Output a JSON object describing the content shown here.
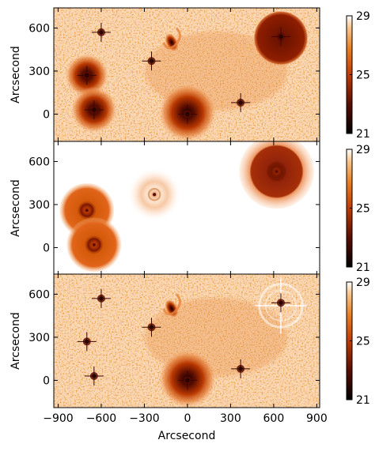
{
  "figure": {
    "xlabel": "Arcsecond",
    "ylabel": "Arcsecond",
    "x_ticks": [
      "−900",
      "−600",
      "−300",
      "0",
      "300",
      "600",
      "900"
    ],
    "y_ticks": [
      "600",
      "300",
      "0"
    ],
    "x_range": [
      -930,
      920
    ],
    "y_range": [
      -190,
      740
    ]
  },
  "panels": [
    {
      "id": "observed",
      "colorbar": {
        "ticks": [
          "29",
          "25",
          "21"
        ],
        "range": [
          21,
          29
        ]
      },
      "sources": [
        {
          "kind": "halo",
          "x": -700,
          "y": 270,
          "r": 150
        },
        {
          "kind": "halo",
          "x": -650,
          "y": 30,
          "r": 160
        },
        {
          "kind": "halo",
          "x": 650,
          "y": 530,
          "r": 190
        },
        {
          "kind": "halo",
          "x": 0,
          "y": 10,
          "r": 200
        },
        {
          "kind": "galaxy",
          "x": -110,
          "y": 500,
          "r": 70
        },
        {
          "kind": "star",
          "x": -700,
          "y": 270
        },
        {
          "kind": "star",
          "x": -650,
          "y": 30
        },
        {
          "kind": "star",
          "x": 650,
          "y": 540
        },
        {
          "kind": "star",
          "x": 0,
          "y": 0
        },
        {
          "kind": "star",
          "x": -250,
          "y": 370
        },
        {
          "kind": "star",
          "x": 370,
          "y": 80
        },
        {
          "kind": "star",
          "x": -600,
          "y": 570
        }
      ]
    },
    {
      "id": "model",
      "colorbar": {
        "ticks": [
          "29",
          "25",
          "21"
        ],
        "range": [
          21,
          29
        ]
      },
      "sources": [
        {
          "kind": "ring",
          "x": -700,
          "y": 260,
          "r": 190
        },
        {
          "kind": "ring",
          "x": -650,
          "y": 20,
          "r": 190
        },
        {
          "kind": "ring",
          "x": -230,
          "y": 370,
          "r": 180
        },
        {
          "kind": "ring",
          "x": 620,
          "y": 530,
          "r": 260
        }
      ]
    },
    {
      "id": "residual",
      "colorbar": {
        "ticks": [
          "29",
          "25",
          "21"
        ],
        "range": [
          21,
          29
        ]
      },
      "sources": [
        {
          "kind": "halo",
          "x": 0,
          "y": 10,
          "r": 200
        },
        {
          "kind": "galaxy",
          "x": -110,
          "y": 500,
          "r": 70
        },
        {
          "kind": "ringresid",
          "x": 650,
          "y": 520,
          "r": 150
        },
        {
          "kind": "star",
          "x": -700,
          "y": 270
        },
        {
          "kind": "star",
          "x": -650,
          "y": 30
        },
        {
          "kind": "star",
          "x": 650,
          "y": 540
        },
        {
          "kind": "star",
          "x": 0,
          "y": 0
        },
        {
          "kind": "star",
          "x": -250,
          "y": 370
        },
        {
          "kind": "star",
          "x": 370,
          "y": 80
        },
        {
          "kind": "star",
          "x": -600,
          "y": 570
        }
      ]
    }
  ]
}
